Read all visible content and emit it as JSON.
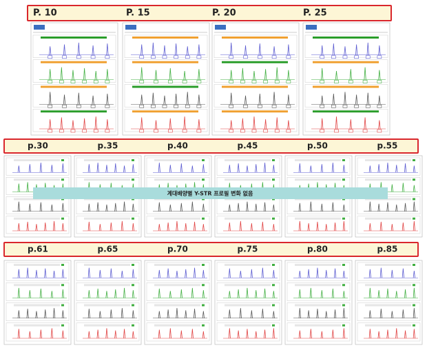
{
  "rows": [
    {
      "labels": [
        "P. 10",
        "P. 15",
        "P. 20",
        "P. 25"
      ]
    },
    {
      "labels": [
        "p.30",
        "p.35",
        "p.40",
        "p.45",
        "p.50",
        "p.55"
      ]
    },
    {
      "labels": [
        "p.61",
        "p.65",
        "p.70",
        "p.75",
        "p.80",
        "p.85"
      ]
    }
  ],
  "banner": "계대배양별 Y-STR 프로필 변화 없음"
}
